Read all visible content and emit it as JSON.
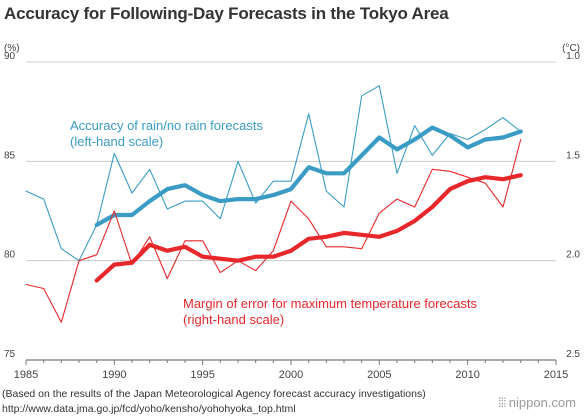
{
  "title": "Accuracy for Following-Day Forecasts in the Tokyo Area",
  "source_note": "(Based on the results of the Japan Meteorological Agency forecast accuracy investigations)",
  "source_url": "http://www.data.jma.go.jp/fcd/yoho/kensho/yohohyoka_top.html",
  "credit": "nippon.com",
  "colors": {
    "blue": "#3a9cc4",
    "red": "#e8272b",
    "axis": "#7a7a7a",
    "grid": "#cccccc"
  },
  "chart_data": {
    "type": "line",
    "title": "Accuracy for Following-Day Forecasts in the Tokyo Area",
    "x_ticks": [
      "1985",
      "1990",
      "1995",
      "2000",
      "2005",
      "2010",
      "2015"
    ],
    "xlim": [
      1985,
      2015
    ],
    "y_left": {
      "unit": "(%)",
      "ylim": [
        75,
        90
      ],
      "ticks": [
        "75",
        "80",
        "85",
        "90"
      ]
    },
    "y_right": {
      "unit": "(°C)",
      "ylim": [
        2.5,
        1.0
      ],
      "inverted": true,
      "ticks": [
        "1.0",
        "1.5",
        "2.0",
        "2.5"
      ]
    },
    "grid": true,
    "series": [
      {
        "name": "Accuracy of rain/no rain forecasts",
        "label_line2": "(left-hand scale)",
        "axis": "left",
        "style": "annual",
        "color": "#3a9cc4",
        "x": [
          1985,
          1986,
          1987,
          1988,
          1989,
          1990,
          1991,
          1992,
          1993,
          1994,
          1995,
          1996,
          1997,
          1998,
          1999,
          2000,
          2001,
          2002,
          2003,
          2004,
          2005,
          2006,
          2007,
          2008,
          2009,
          2010,
          2011,
          2012,
          2013
        ],
        "values": [
          83.5,
          83.1,
          80.6,
          80.0,
          81.8,
          85.4,
          83.4,
          84.6,
          82.6,
          83.0,
          83.0,
          82.1,
          85.0,
          82.9,
          84.0,
          84.0,
          87.4,
          83.5,
          82.7,
          88.3,
          88.8,
          84.4,
          86.8,
          85.3,
          86.4,
          86.1,
          86.6,
          87.2,
          86.5
        ]
      },
      {
        "name": "Accuracy of rain/no rain forecasts (moving average)",
        "axis": "left",
        "style": "moving-average",
        "color": "#3a9cc4",
        "x": [
          1989,
          1990,
          1991,
          1992,
          1993,
          1994,
          1995,
          1996,
          1997,
          1998,
          1999,
          2000,
          2001,
          2002,
          2003,
          2004,
          2005,
          2006,
          2007,
          2008,
          2009,
          2010,
          2011,
          2012,
          2013
        ],
        "values": [
          81.8,
          82.3,
          82.3,
          83.0,
          83.6,
          83.8,
          83.3,
          83.0,
          83.1,
          83.1,
          83.3,
          83.6,
          84.7,
          84.4,
          84.4,
          85.3,
          86.2,
          85.6,
          86.1,
          86.7,
          86.3,
          85.7,
          86.1,
          86.2,
          86.5
        ]
      },
      {
        "name": "Margin of error for maximum temperature forecasts",
        "label_line2": "(right-hand scale)",
        "axis": "right",
        "style": "annual",
        "color": "#e8272b",
        "x": [
          1985,
          1986,
          1987,
          1988,
          1989,
          1990,
          1991,
          1992,
          1993,
          1994,
          1995,
          1996,
          1997,
          1998,
          1999,
          2000,
          2001,
          2002,
          2003,
          2004,
          2005,
          2006,
          2007,
          2008,
          2009,
          2010,
          2011,
          2012,
          2013
        ],
        "values": [
          2.12,
          2.14,
          2.31,
          2.0,
          1.97,
          1.75,
          2.02,
          1.88,
          2.09,
          1.9,
          1.9,
          2.06,
          2.0,
          2.05,
          1.95,
          1.7,
          1.79,
          1.93,
          1.93,
          1.94,
          1.76,
          1.69,
          1.73,
          1.54,
          1.55,
          1.58,
          1.61,
          1.73,
          1.39
        ]
      },
      {
        "name": "Margin of error for maximum temperature forecasts (moving average)",
        "axis": "right",
        "style": "moving-average",
        "color": "#e8272b",
        "x": [
          1989,
          1990,
          1991,
          1992,
          1993,
          1994,
          1995,
          1996,
          1997,
          1998,
          1999,
          2000,
          2001,
          2002,
          2003,
          2004,
          2005,
          2006,
          2007,
          2008,
          2009,
          2010,
          2011,
          2012,
          2013
        ],
        "values": [
          2.1,
          2.02,
          2.01,
          1.92,
          1.95,
          1.93,
          1.98,
          1.99,
          2.0,
          1.98,
          1.98,
          1.95,
          1.89,
          1.88,
          1.86,
          1.87,
          1.88,
          1.85,
          1.8,
          1.73,
          1.64,
          1.6,
          1.58,
          1.59,
          1.57
        ]
      }
    ],
    "annotations": [
      {
        "series": 0,
        "line1": "Accuracy of rain/no rain forecasts",
        "line2": "(left-hand scale)",
        "color": "#3a9cc4"
      },
      {
        "series": 2,
        "line1": "Margin of error for maximum temperature forecasts",
        "line2": "(right-hand scale)",
        "color": "#e8272b"
      }
    ]
  }
}
